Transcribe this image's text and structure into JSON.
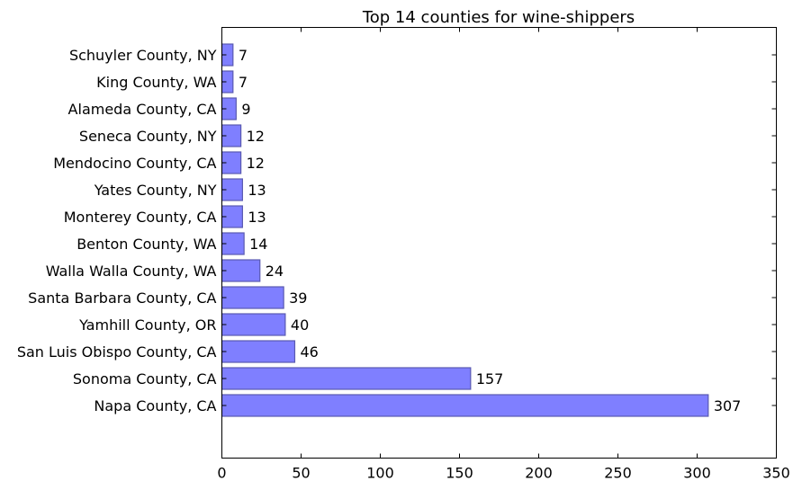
{
  "chart_data": {
    "type": "bar",
    "orientation": "horizontal",
    "title": "Top 14 counties for wine-shippers",
    "xlabel": "",
    "ylabel": "",
    "xlim": [
      0,
      350
    ],
    "xticks": [
      0,
      50,
      100,
      150,
      200,
      250,
      300,
      350
    ],
    "grid": false,
    "bar_color": "#7f7fff",
    "bar_edge_color": "#5a5ab0",
    "categories": [
      "Napa County, CA",
      "Sonoma County, CA",
      "San Luis Obispo County, CA",
      "Yamhill County, OR",
      "Santa Barbara County, CA",
      "Walla Walla County, WA",
      "Benton County, WA",
      "Monterey County, CA",
      "Yates County, NY",
      "Mendocino County, CA",
      "Seneca County, NY",
      "Alameda County, CA",
      "King County, WA",
      "Schuyler County, NY"
    ],
    "values": [
      307,
      157,
      46,
      40,
      39,
      24,
      14,
      13,
      13,
      12,
      12,
      9,
      7,
      7
    ],
    "data_labels": [
      "307",
      "157",
      "46",
      "40",
      "39",
      "24",
      "14",
      "13",
      "13",
      "12",
      "12",
      "9",
      "7",
      "7"
    ]
  }
}
